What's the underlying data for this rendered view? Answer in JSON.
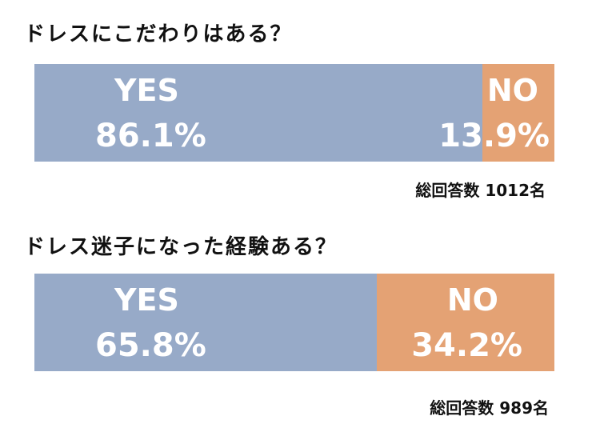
{
  "chart_data": [
    {
      "type": "bar",
      "title": "ドレスにこだわりはある？",
      "categories": [
        "YES",
        "NO"
      ],
      "values": [
        86.1,
        13.9
      ],
      "value_labels": [
        "86.1%",
        "13.9%"
      ],
      "total_label": "総回答数 1012名",
      "colors": [
        "#97aac8",
        "#e4a274"
      ],
      "stacked": true,
      "orientation": "horizontal",
      "grid": false
    },
    {
      "type": "bar",
      "title": "ドレス迷子になった経験ある？",
      "categories": [
        "YES",
        "NO"
      ],
      "values": [
        65.8,
        34.2
      ],
      "value_labels": [
        "65.8%",
        "34.2%"
      ],
      "total_label": "総回答数 989名",
      "colors": [
        "#97aac8",
        "#e4a274"
      ],
      "stacked": true,
      "orientation": "horizontal",
      "grid": false
    }
  ]
}
